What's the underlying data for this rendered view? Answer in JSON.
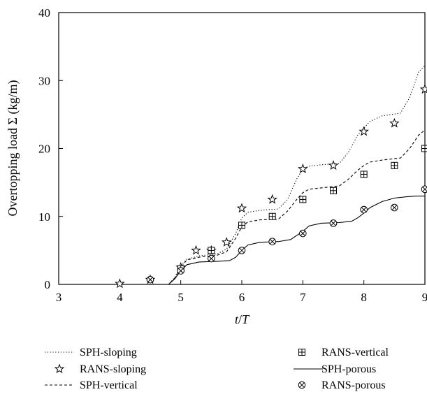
{
  "chart_data": {
    "type": "line",
    "title": "",
    "xlabel_parts": [
      "t",
      "/",
      "T"
    ],
    "ylabel": "Overtopping load Σ (kg/m)",
    "xlim": [
      3,
      9
    ],
    "ylim": [
      0,
      40
    ],
    "xticks": [
      3,
      4,
      5,
      6,
      7,
      8,
      9
    ],
    "yticks": [
      0,
      10,
      20,
      30,
      40
    ],
    "grid": false,
    "legend_position": "below",
    "series": [
      {
        "name": "SPH-sloping",
        "kind": "line",
        "style": "dotted",
        "color": "#000000",
        "points": [
          [
            3,
            0
          ],
          [
            3.5,
            0
          ],
          [
            4,
            0
          ],
          [
            4.5,
            0
          ],
          [
            4.8,
            0
          ],
          [
            4.9,
            1
          ],
          [
            5,
            2.8
          ],
          [
            5.1,
            3.7
          ],
          [
            5.3,
            4.2
          ],
          [
            5.6,
            4.5
          ],
          [
            5.75,
            5.2
          ],
          [
            5.9,
            7.5
          ],
          [
            6,
            9.8
          ],
          [
            6.1,
            10.6
          ],
          [
            6.3,
            10.9
          ],
          [
            6.6,
            11.1
          ],
          [
            6.75,
            12.5
          ],
          [
            6.9,
            15.5
          ],
          [
            7,
            17
          ],
          [
            7.1,
            17.4
          ],
          [
            7.3,
            17.6
          ],
          [
            7.6,
            17.8
          ],
          [
            7.75,
            19.5
          ],
          [
            7.9,
            22
          ],
          [
            8,
            23
          ],
          [
            8.1,
            24
          ],
          [
            8.3,
            24.8
          ],
          [
            8.6,
            25.2
          ],
          [
            8.75,
            27.5
          ],
          [
            8.9,
            31.3
          ],
          [
            9,
            32.2
          ]
        ]
      },
      {
        "name": "RANS-sloping",
        "kind": "marker",
        "marker": "star",
        "points": [
          [
            4,
            0.1
          ],
          [
            4.5,
            0.7
          ],
          [
            5,
            2.5
          ],
          [
            5.25,
            5
          ],
          [
            5.5,
            5
          ],
          [
            5.75,
            6.2
          ],
          [
            6,
            11.2
          ],
          [
            6.5,
            12.5
          ],
          [
            7,
            17
          ],
          [
            7.5,
            17.5
          ],
          [
            8,
            22.5
          ],
          [
            8.5,
            23.7
          ],
          [
            9,
            28.7
          ]
        ]
      },
      {
        "name": "SPH-vertical",
        "kind": "line",
        "style": "dashed",
        "color": "#000000",
        "points": [
          [
            3,
            0
          ],
          [
            3.5,
            0
          ],
          [
            4,
            0
          ],
          [
            4.5,
            0
          ],
          [
            4.8,
            0
          ],
          [
            4.9,
            0.9
          ],
          [
            5,
            2.5
          ],
          [
            5.1,
            3.6
          ],
          [
            5.3,
            4
          ],
          [
            5.6,
            4.3
          ],
          [
            5.75,
            4.8
          ],
          [
            5.9,
            6.8
          ],
          [
            6,
            8.5
          ],
          [
            6.1,
            9.2
          ],
          [
            6.3,
            9.5
          ],
          [
            6.6,
            9.6
          ],
          [
            6.75,
            10.8
          ],
          [
            6.9,
            12.5
          ],
          [
            7,
            13.5
          ],
          [
            7.1,
            14
          ],
          [
            7.3,
            14.2
          ],
          [
            7.6,
            14.5
          ],
          [
            7.75,
            15.5
          ],
          [
            7.9,
            16.8
          ],
          [
            8,
            17.5
          ],
          [
            8.1,
            18
          ],
          [
            8.3,
            18.3
          ],
          [
            8.6,
            18.6
          ],
          [
            8.75,
            20
          ],
          [
            8.9,
            22
          ],
          [
            9,
            22.7
          ]
        ]
      },
      {
        "name": "RANS-vertical",
        "kind": "marker",
        "marker": "boxplus",
        "points": [
          [
            5,
            2.3
          ],
          [
            5.5,
            5
          ],
          [
            6,
            8.7
          ],
          [
            6.5,
            10
          ],
          [
            7,
            12.5
          ],
          [
            7.5,
            13.8
          ],
          [
            8,
            16.2
          ],
          [
            8.5,
            17.5
          ],
          [
            9,
            20
          ]
        ]
      },
      {
        "name": "SPH-porous",
        "kind": "line",
        "style": "solid",
        "color": "#000000",
        "points": [
          [
            3,
            0
          ],
          [
            3.5,
            0
          ],
          [
            4,
            0
          ],
          [
            4.5,
            0
          ],
          [
            4.8,
            0
          ],
          [
            4.9,
            0.8
          ],
          [
            5,
            2
          ],
          [
            5.1,
            2.9
          ],
          [
            5.3,
            3.3
          ],
          [
            5.6,
            3.4
          ],
          [
            5.8,
            3.5
          ],
          [
            5.9,
            4
          ],
          [
            6,
            5
          ],
          [
            6.1,
            5.8
          ],
          [
            6.3,
            6.2
          ],
          [
            6.6,
            6.3
          ],
          [
            6.8,
            6.6
          ],
          [
            6.9,
            7.2
          ],
          [
            7,
            7.8
          ],
          [
            7.1,
            8.6
          ],
          [
            7.3,
            9
          ],
          [
            7.6,
            9.1
          ],
          [
            7.8,
            9.3
          ],
          [
            7.9,
            9.8
          ],
          [
            8,
            10.5
          ],
          [
            8.1,
            11.3
          ],
          [
            8.3,
            12.2
          ],
          [
            8.5,
            12.7
          ],
          [
            8.7,
            12.9
          ],
          [
            8.85,
            13
          ],
          [
            9,
            13
          ]
        ]
      },
      {
        "name": "RANS-porous",
        "kind": "marker",
        "marker": "boxtimes",
        "points": [
          [
            4.5,
            0.7
          ],
          [
            5,
            2
          ],
          [
            5.5,
            3.8
          ],
          [
            6,
            5
          ],
          [
            6.5,
            6.3
          ],
          [
            7,
            7.5
          ],
          [
            7.5,
            9
          ],
          [
            8,
            11
          ],
          [
            8.5,
            11.3
          ],
          [
            9,
            14
          ]
        ]
      }
    ]
  }
}
